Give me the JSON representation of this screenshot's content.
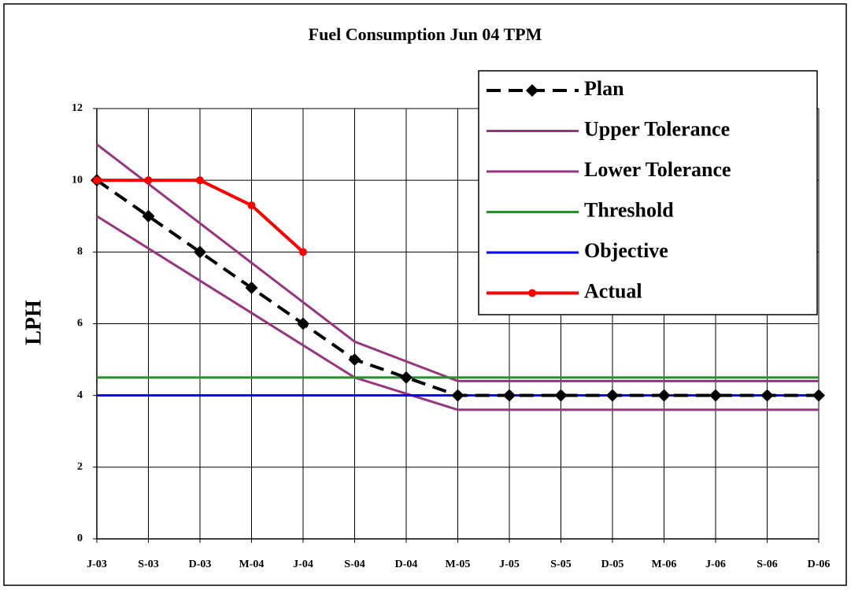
{
  "chart_data": {
    "type": "line",
    "title": "Fuel Consumption Jun 04 TPM",
    "y_label": "LPH",
    "categories": [
      "J-03",
      "S-03",
      "D-03",
      "M-04",
      "J-04",
      "S-04",
      "D-04",
      "M-05",
      "J-05",
      "S-05",
      "D-05",
      "M-06",
      "J-06",
      "S-06",
      "D-06"
    ],
    "series": [
      {
        "name": "Plan",
        "color": "#000000",
        "dash": true,
        "marker": "diamond",
        "values": [
          10,
          9,
          8,
          7,
          6,
          5,
          4.5,
          4,
          4,
          4,
          4,
          4,
          4,
          4,
          4
        ]
      },
      {
        "name": "Upper Tolerance",
        "color": "#993380",
        "values": [
          11,
          9.9,
          8.8,
          7.7,
          6.6,
          5.5,
          4.95,
          4.4,
          4.4,
          4.4,
          4.4,
          4.4,
          4.4,
          4.4,
          4.4
        ]
      },
      {
        "name": "Lower Tolerance",
        "color": "#993380",
        "values": [
          9,
          8.1,
          7.2,
          6.3,
          5.4,
          4.5,
          4.05,
          3.6,
          3.6,
          3.6,
          3.6,
          3.6,
          3.6,
          3.6,
          3.6
        ]
      },
      {
        "name": "Threshold",
        "color": "#2e8b2e",
        "values": [
          4.5,
          4.5,
          4.5,
          4.5,
          4.5,
          4.5,
          4.5,
          4.5,
          4.5,
          4.5,
          4.5,
          4.5,
          4.5,
          4.5,
          4.5
        ]
      },
      {
        "name": "Objective",
        "color": "#0000ff",
        "values": [
          4,
          4,
          4,
          4,
          4,
          4,
          4,
          4,
          4,
          4,
          4,
          4,
          4,
          4,
          4
        ]
      },
      {
        "name": "Actual",
        "color": "#ff0000",
        "marker": "circle",
        "values": [
          10,
          10,
          10,
          9.3,
          8,
          null,
          null,
          null,
          null,
          null,
          null,
          null,
          null,
          null,
          null
        ]
      }
    ],
    "ylim": [
      0,
      12
    ],
    "yticks": [
      0,
      2,
      4,
      6,
      8,
      10,
      12
    ],
    "grid": true,
    "legend": "upper right"
  }
}
